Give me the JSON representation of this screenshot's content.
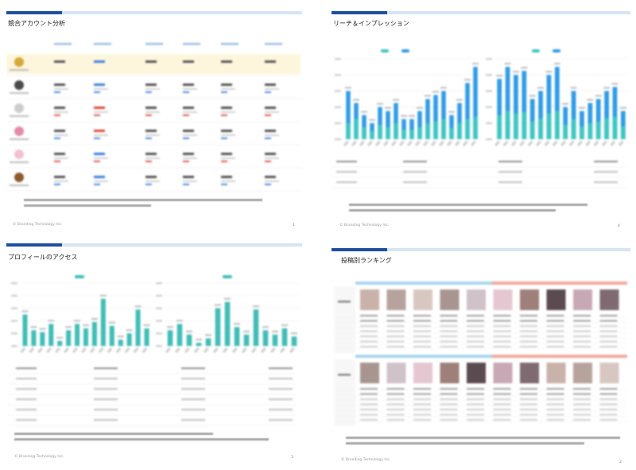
{
  "panels": {
    "competitor": {
      "title": "競合アカウント分析",
      "footer": "© Branding Technology Inc.",
      "page_number": "1",
      "row_count": 6,
      "col_count": 6,
      "colors": {
        "highlight": "#fdf6dc",
        "positive": "#3d7fe0",
        "negative": "#e0473d"
      }
    },
    "reach": {
      "title": "リーチ＆インプレッション",
      "footer": "© Branding Technology Inc.",
      "page_number": "4",
      "colors": {
        "impressions": "#2f9be6",
        "reach": "#3ec6c0"
      }
    },
    "profile": {
      "title": "プロフィールのアクセス",
      "footer": "© Branding Technology Inc.",
      "page_number": "3",
      "colors": {
        "bar": "#40bdb6"
      }
    },
    "ranking": {
      "title": "投稿別ランキング",
      "footer": "© Branding Technology Inc.",
      "page_number": "2",
      "colors": {
        "left_group": "#a7d5ee",
        "right_group": "#f0a99c"
      }
    }
  },
  "chart_data": [
    {
      "type": "bar",
      "series": [
        {
          "values": [
            60,
            45,
            30,
            20,
            40,
            35,
            45,
            25,
            25,
            35,
            50,
            55,
            60,
            30,
            45,
            70,
            90
          ]
        },
        {
          "values": [
            20,
            25,
            15,
            10,
            18,
            15,
            20,
            12,
            12,
            15,
            20,
            22,
            25,
            14,
            20,
            25,
            28
          ]
        }
      ]
    },
    {
      "type": "bar",
      "series": [
        {
          "values": [
            75,
            90,
            80,
            85,
            50,
            60,
            80,
            90,
            40,
            60,
            35,
            45,
            50,
            60,
            65,
            35
          ]
        },
        {
          "values": [
            30,
            35,
            32,
            34,
            22,
            26,
            32,
            35,
            18,
            25,
            16,
            20,
            22,
            26,
            28,
            16
          ]
        }
      ]
    },
    {
      "type": "bar",
      "series": [
        {
          "values": [
            50,
            25,
            22,
            35,
            8,
            25,
            35,
            28,
            38,
            75,
            32,
            10,
            20,
            58,
            28
          ]
        }
      ]
    },
    {
      "type": "bar",
      "series": [
        {
          "values": [
            25,
            35,
            18,
            5,
            12,
            60,
            70,
            30,
            18,
            58,
            25,
            18,
            28,
            15
          ]
        }
      ]
    }
  ]
}
